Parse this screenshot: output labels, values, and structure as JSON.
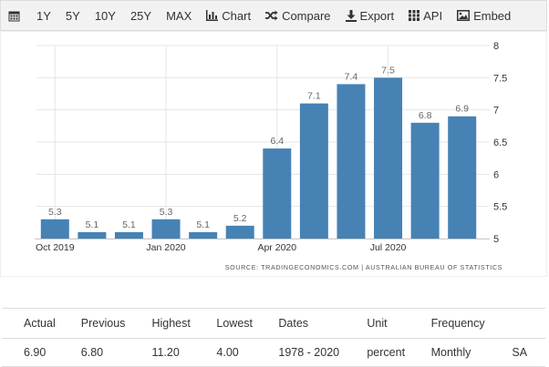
{
  "toolbar": {
    "ranges": [
      "1Y",
      "5Y",
      "10Y",
      "25Y",
      "MAX"
    ],
    "chart_label": "Chart",
    "compare_label": "Compare",
    "export_label": "Export",
    "api_label": "API",
    "embed_label": "Embed"
  },
  "chart_data": {
    "type": "bar",
    "categories": [
      "2019-10",
      "2019-11",
      "2019-12",
      "2020-01",
      "2020-02",
      "2020-03",
      "2020-04",
      "2020-05",
      "2020-06",
      "2020-07",
      "2020-08",
      "2020-09"
    ],
    "values": [
      5.3,
      5.1,
      5.1,
      5.3,
      5.1,
      5.2,
      6.4,
      7.1,
      7.4,
      7.5,
      6.8,
      6.9
    ],
    "data_labels": [
      "5.3",
      "5.1",
      "5.1",
      "5.3",
      "5.1",
      "5.2",
      "6.4",
      "7.1",
      "7.4",
      "7.5",
      "6.8",
      "6.9"
    ],
    "x_tick_labels": [
      {
        "index": 0,
        "label": "Oct 2019"
      },
      {
        "index": 3,
        "label": "Jan 2020"
      },
      {
        "index": 6,
        "label": "Apr 2020"
      },
      {
        "index": 9,
        "label": "Jul 2020"
      }
    ],
    "y_ticks": [
      "5",
      "5.5",
      "6",
      "6.5",
      "7",
      "7.5",
      "8"
    ],
    "ylim": [
      5,
      8
    ],
    "y_axis_side": "right",
    "grid": true,
    "bar_color": "#4682b4",
    "source": "SOURCE: TRADINGECONOMICS.COM  |  AUSTRALIAN BUREAU OF STATISTICS"
  },
  "stats": {
    "headers": [
      "Actual",
      "Previous",
      "Highest",
      "Lowest",
      "Dates",
      "Unit",
      "Frequency",
      ""
    ],
    "values": [
      "6.90",
      "6.80",
      "11.20",
      "4.00",
      "1978 - 2020",
      "percent",
      "Monthly",
      "SA"
    ]
  }
}
